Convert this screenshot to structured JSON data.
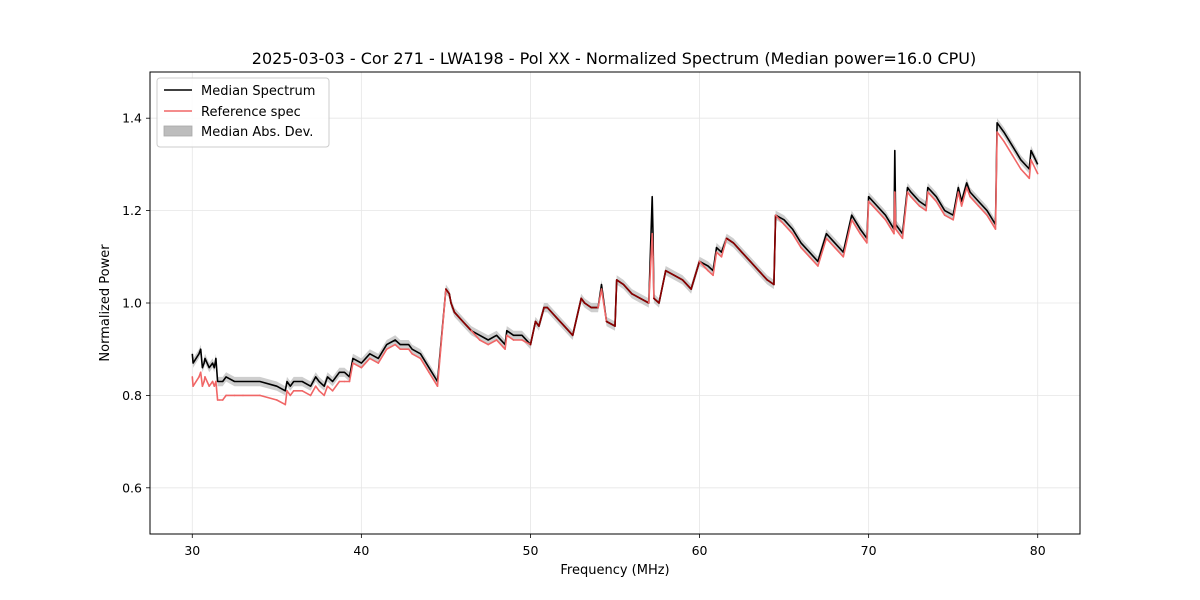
{
  "chart_data": {
    "type": "line",
    "title": "2025-03-03 - Cor 271 - LWA198 - Pol XX - Normalized Spectrum (Median power=16.0 CPU)",
    "xlabel": "Frequency (MHz)",
    "ylabel": "Normalized Power",
    "xlim": [
      27.5,
      82.5
    ],
    "ylim": [
      0.5,
      1.5
    ],
    "xticks": [
      30,
      40,
      50,
      60,
      70,
      80
    ],
    "yticks": [
      0.6,
      0.8,
      1.0,
      1.2,
      1.4
    ],
    "grid": true,
    "legend_position": "top-left",
    "colors": {
      "median": "#000000",
      "reference": "#f06666",
      "reference_overlap": "#8b0000",
      "mad_fill": "#bdbdbd"
    },
    "series": [
      {
        "name": "Median Spectrum",
        "x": [
          30.0,
          30.05,
          30.4,
          30.5,
          30.6,
          30.7,
          30.75,
          31.0,
          31.2,
          31.3,
          31.4,
          31.5,
          31.6,
          31.8,
          32.0,
          32.5,
          33.0,
          34.0,
          35.0,
          35.5,
          35.6,
          35.8,
          36.0,
          36.5,
          37.0,
          37.3,
          37.5,
          37.8,
          38.0,
          38.3,
          38.7,
          39.0,
          39.3,
          39.5,
          40.0,
          40.5,
          41.0,
          41.5,
          42.0,
          42.3,
          42.8,
          43.0,
          43.5,
          44.0,
          44.5,
          45.0,
          45.2,
          45.3,
          45.5,
          46.0,
          46.5,
          47.0,
          47.5,
          48.0,
          48.5,
          48.6,
          49.0,
          49.5,
          50.0,
          50.3,
          50.5,
          50.8,
          51.0,
          51.5,
          52.0,
          52.5,
          53.0,
          53.2,
          53.6,
          54.0,
          54.2,
          54.5,
          55.0,
          55.1,
          55.5,
          56.0,
          56.5,
          57.0,
          57.2,
          57.25,
          57.3,
          57.6,
          58.0,
          58.5,
          59.0,
          59.5,
          60.0,
          60.5,
          60.8,
          61.0,
          61.3,
          61.6,
          62.0,
          62.5,
          63.0,
          63.5,
          64.0,
          64.4,
          64.5,
          65.0,
          65.5,
          66.0,
          66.5,
          67.0,
          67.5,
          68.0,
          68.5,
          69.0,
          69.5,
          69.9,
          70.0,
          70.5,
          71.0,
          71.5,
          71.55,
          71.6,
          72.0,
          72.3,
          72.5,
          73.0,
          73.4,
          73.5,
          74.0,
          74.5,
          75.0,
          75.3,
          75.5,
          75.8,
          76.0,
          76.5,
          77.0,
          77.5,
          77.6,
          78.0,
          78.5,
          79.0,
          79.5,
          79.6,
          80.0
        ],
        "y": [
          0.89,
          0.87,
          0.89,
          0.9,
          0.86,
          0.87,
          0.88,
          0.86,
          0.87,
          0.86,
          0.88,
          0.83,
          0.83,
          0.83,
          0.84,
          0.83,
          0.83,
          0.83,
          0.82,
          0.81,
          0.83,
          0.82,
          0.83,
          0.83,
          0.82,
          0.84,
          0.83,
          0.82,
          0.84,
          0.83,
          0.85,
          0.85,
          0.84,
          0.88,
          0.87,
          0.89,
          0.88,
          0.91,
          0.92,
          0.91,
          0.91,
          0.9,
          0.89,
          0.86,
          0.83,
          1.03,
          1.02,
          1.0,
          0.98,
          0.96,
          0.94,
          0.93,
          0.92,
          0.93,
          0.91,
          0.94,
          0.93,
          0.93,
          0.91,
          0.96,
          0.95,
          0.99,
          0.99,
          0.97,
          0.95,
          0.93,
          1.01,
          1.0,
          0.99,
          0.99,
          1.04,
          0.96,
          0.95,
          1.05,
          1.04,
          1.02,
          1.01,
          1.0,
          1.23,
          1.15,
          1.01,
          1.0,
          1.07,
          1.06,
          1.05,
          1.03,
          1.09,
          1.08,
          1.07,
          1.12,
          1.11,
          1.14,
          1.13,
          1.11,
          1.09,
          1.07,
          1.05,
          1.04,
          1.19,
          1.18,
          1.16,
          1.13,
          1.11,
          1.09,
          1.15,
          1.13,
          1.11,
          1.19,
          1.16,
          1.14,
          1.23,
          1.21,
          1.19,
          1.16,
          1.33,
          1.17,
          1.15,
          1.25,
          1.24,
          1.22,
          1.21,
          1.25,
          1.23,
          1.2,
          1.19,
          1.25,
          1.22,
          1.26,
          1.24,
          1.22,
          1.2,
          1.17,
          1.39,
          1.37,
          1.34,
          1.31,
          1.29,
          1.33,
          1.3
        ]
      },
      {
        "name": "Reference spec",
        "x": [
          30.0,
          30.05,
          30.4,
          30.5,
          30.6,
          30.7,
          30.75,
          31.0,
          31.2,
          31.3,
          31.4,
          31.5,
          31.6,
          31.8,
          32.0,
          32.5,
          33.0,
          34.0,
          35.0,
          35.5,
          35.6,
          35.8,
          36.0,
          36.5,
          37.0,
          37.3,
          37.5,
          37.8,
          38.0,
          38.3,
          38.7,
          39.0,
          39.3,
          39.5,
          40.0,
          40.5,
          41.0,
          41.5,
          42.0,
          42.3,
          42.8,
          43.0,
          43.5,
          44.0,
          44.5,
          45.0,
          45.2,
          45.3,
          45.5,
          46.0,
          46.5,
          47.0,
          47.5,
          48.0,
          48.5,
          48.6,
          49.0,
          49.5,
          50.0,
          50.3,
          50.5,
          50.8,
          51.0,
          51.5,
          52.0,
          52.5,
          53.0,
          53.2,
          53.6,
          54.0,
          54.2,
          54.5,
          55.0,
          55.1,
          55.5,
          56.0,
          56.5,
          57.0,
          57.2,
          57.25,
          57.3,
          57.6,
          58.0,
          58.5,
          59.0,
          59.5,
          60.0,
          60.5,
          60.8,
          61.0,
          61.3,
          61.6,
          62.0,
          62.5,
          63.0,
          63.5,
          64.0,
          64.4,
          64.5,
          65.0,
          65.5,
          66.0,
          66.5,
          67.0,
          67.5,
          68.0,
          68.5,
          69.0,
          69.5,
          69.9,
          70.0,
          70.5,
          71.0,
          71.5,
          71.55,
          71.6,
          72.0,
          72.3,
          72.5,
          73.0,
          73.4,
          73.5,
          74.0,
          74.5,
          75.0,
          75.3,
          75.5,
          75.8,
          76.0,
          76.5,
          77.0,
          77.5,
          77.6,
          78.0,
          78.5,
          79.0,
          79.5,
          79.6,
          80.0
        ],
        "y": [
          0.84,
          0.82,
          0.84,
          0.85,
          0.82,
          0.83,
          0.84,
          0.82,
          0.83,
          0.82,
          0.83,
          0.79,
          0.79,
          0.79,
          0.8,
          0.8,
          0.8,
          0.8,
          0.79,
          0.78,
          0.81,
          0.8,
          0.81,
          0.81,
          0.8,
          0.82,
          0.81,
          0.8,
          0.82,
          0.81,
          0.83,
          0.83,
          0.83,
          0.87,
          0.86,
          0.88,
          0.87,
          0.9,
          0.91,
          0.9,
          0.9,
          0.89,
          0.88,
          0.85,
          0.82,
          1.03,
          1.02,
          1.0,
          0.98,
          0.96,
          0.94,
          0.92,
          0.91,
          0.92,
          0.9,
          0.93,
          0.92,
          0.92,
          0.91,
          0.96,
          0.95,
          0.99,
          0.99,
          0.97,
          0.95,
          0.93,
          1.01,
          1.0,
          0.99,
          0.99,
          1.03,
          0.96,
          0.95,
          1.05,
          1.04,
          1.02,
          1.01,
          1.0,
          1.15,
          1.1,
          1.01,
          1.0,
          1.07,
          1.06,
          1.05,
          1.03,
          1.09,
          1.07,
          1.06,
          1.11,
          1.1,
          1.14,
          1.13,
          1.11,
          1.09,
          1.07,
          1.05,
          1.04,
          1.19,
          1.17,
          1.15,
          1.12,
          1.1,
          1.08,
          1.14,
          1.12,
          1.1,
          1.18,
          1.15,
          1.13,
          1.22,
          1.2,
          1.18,
          1.15,
          1.24,
          1.16,
          1.14,
          1.24,
          1.23,
          1.21,
          1.2,
          1.24,
          1.22,
          1.19,
          1.18,
          1.24,
          1.21,
          1.25,
          1.23,
          1.21,
          1.19,
          1.16,
          1.37,
          1.35,
          1.32,
          1.29,
          1.27,
          1.31,
          1.28
        ]
      },
      {
        "name": "Median Abs. Dev.",
        "type": "band",
        "half_width": 0.01
      }
    ]
  }
}
